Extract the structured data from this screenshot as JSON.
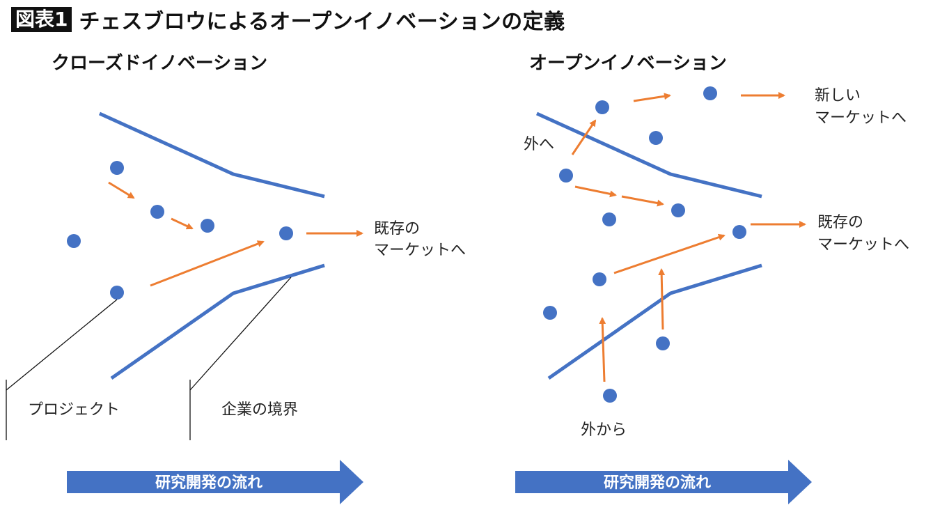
{
  "header": {
    "badge": "図表1",
    "title": "チェスブロウによるオープンイノベーションの定義"
  },
  "left": {
    "title": "クローズドイノベーション",
    "market_line1": "既存の",
    "market_line2": "マーケットへ",
    "project_label": "プロジェクト",
    "boundary_label": "企業の境界",
    "flow_label": "研究開発の流れ"
  },
  "right": {
    "title": "オープンイノベーション",
    "new_market_line1": "新しい",
    "new_market_line2": "マーケットへ",
    "outward_label": "外へ",
    "market_line1": "既存の",
    "market_line2": "マーケットへ",
    "inward_label": "外から",
    "flow_label": "研究開発の流れ"
  },
  "colors": {
    "boundary": "#4472c4",
    "dot": "#4472c4",
    "arrow": "#ed7d31",
    "flow_arrow": "#4472c4"
  }
}
